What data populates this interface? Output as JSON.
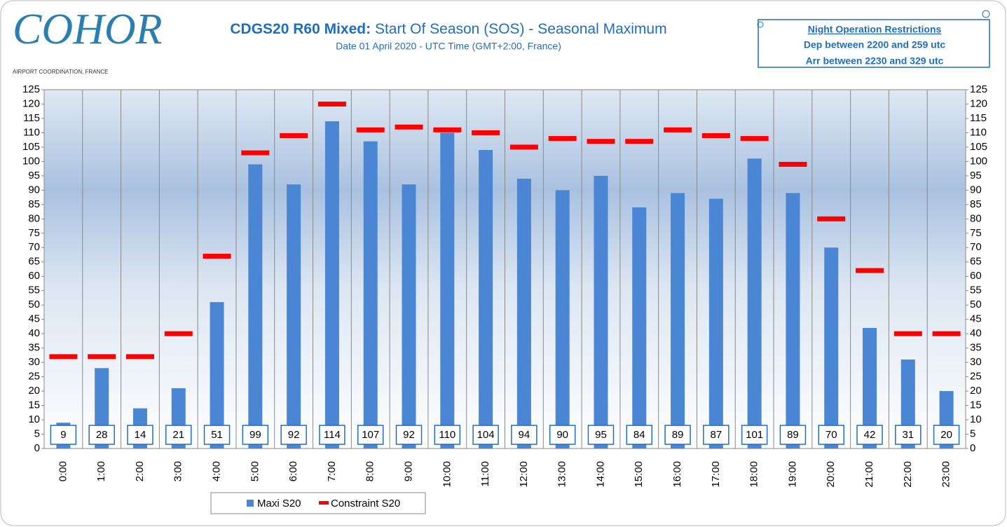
{
  "logo": {
    "name": "COHOR",
    "tagline": "AIRPORT COORDINATION, FRANCE"
  },
  "note": {
    "title": "Night Operation Restrictions",
    "lines": [
      "Dep between 2200 and 259 utc",
      "Arr between 2230 and 329 utc"
    ]
  },
  "chart_data": {
    "type": "bar",
    "title_prefix": "CDGS20 R60 Mixed:",
    "title": "Start Of Season (SOS) - Seasonal Maximum",
    "subtitle": "Date 01 April 2020 - UTC Time (GMT+2:00, France)",
    "categories": [
      "0:00",
      "1:00",
      "2:00",
      "3:00",
      "4:00",
      "5:00",
      "6:00",
      "7:00",
      "8:00",
      "9:00",
      "10:00",
      "11:00",
      "12:00",
      "13:00",
      "14:00",
      "15:00",
      "16:00",
      "17:00",
      "18:00",
      "19:00",
      "20:00",
      "21:00",
      "22:00",
      "23:00"
    ],
    "series": [
      {
        "name": "Maxi S20",
        "color": "#4a86d4",
        "mark": "bar",
        "values": [
          9,
          28,
          14,
          21,
          51,
          99,
          92,
          114,
          107,
          92,
          110,
          104,
          94,
          90,
          95,
          84,
          89,
          87,
          101,
          89,
          70,
          42,
          31,
          20
        ]
      },
      {
        "name": "Constraint S20",
        "color": "#ff0000",
        "mark": "dash",
        "values": [
          32,
          32,
          32,
          40,
          67,
          103,
          109,
          120,
          111,
          112,
          111,
          110,
          105,
          108,
          107,
          107,
          111,
          109,
          108,
          99,
          80,
          62,
          40,
          40
        ]
      }
    ],
    "ylim": [
      0,
      125
    ],
    "yticks": [
      0,
      5,
      10,
      15,
      20,
      25,
      30,
      35,
      40,
      45,
      50,
      55,
      60,
      65,
      70,
      75,
      80,
      85,
      90,
      95,
      100,
      105,
      110,
      115,
      120,
      125
    ],
    "y2lim": [
      0,
      125
    ],
    "y2ticks": [
      0,
      5,
      10,
      15,
      20,
      25,
      30,
      35,
      40,
      45,
      50,
      55,
      60,
      65,
      70,
      75,
      80,
      85,
      90,
      95,
      100,
      105,
      110,
      115,
      120,
      125
    ],
    "grid": true,
    "legend": "bottom"
  }
}
